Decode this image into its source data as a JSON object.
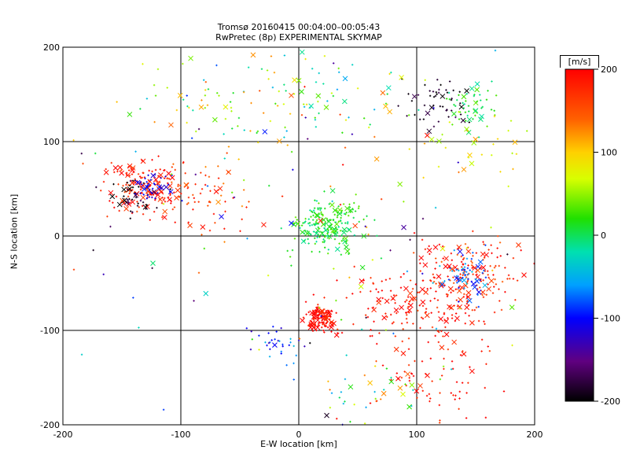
{
  "chart_data": {
    "type": "scatter",
    "title": "Tromsø 20160415 00:04:00–00:05:43",
    "subtitle": "RwPretec (8p) EXPERIMENTAL SKYMAP",
    "xlabel": "E-W location [km]",
    "ylabel": "N-S location [km]",
    "xlim": [
      -200,
      200
    ],
    "ylim": [
      -200,
      200
    ],
    "xticks": [
      -200,
      -100,
      0,
      100,
      200
    ],
    "yticks": [
      -200,
      -100,
      0,
      100,
      200
    ],
    "grid": true,
    "markers": [
      "+",
      "x"
    ],
    "colorbar": {
      "label": "[m/s]",
      "range": [
        -200,
        200
      ],
      "ticks": [
        200,
        100,
        0,
        -100,
        -200
      ],
      "placement": "right"
    },
    "clusters": [
      {
        "x": -130,
        "y": 50,
        "sx": 18,
        "sy": 14,
        "n": 160,
        "v": [
          150,
          220
        ]
      },
      {
        "x": -140,
        "y": 40,
        "sx": 10,
        "sy": 10,
        "n": 40,
        "v": [
          -210,
          -160
        ]
      },
      {
        "x": -125,
        "y": 52,
        "sx": 8,
        "sy": 6,
        "n": 40,
        "v": [
          -130,
          -90
        ]
      },
      {
        "x": -80,
        "y": 45,
        "sx": 20,
        "sy": 20,
        "n": 60,
        "v": [
          120,
          200
        ]
      },
      {
        "x": -60,
        "y": 140,
        "sx": 40,
        "sy": 30,
        "n": 70,
        "v": [
          -100,
          160
        ]
      },
      {
        "x": 20,
        "y": 10,
        "sx": 12,
        "sy": 12,
        "n": 170,
        "v": [
          -20,
          40
        ]
      },
      {
        "x": 40,
        "y": 25,
        "sx": 10,
        "sy": 5,
        "n": 30,
        "v": [
          0,
          40
        ]
      },
      {
        "x": 20,
        "y": -85,
        "sx": 6,
        "sy": 7,
        "n": 130,
        "v": [
          170,
          220
        ]
      },
      {
        "x": 85,
        "y": -70,
        "sx": 30,
        "sy": 18,
        "n": 110,
        "v": [
          160,
          220
        ]
      },
      {
        "x": 120,
        "y": -130,
        "sx": 25,
        "sy": 40,
        "n": 120,
        "v": [
          160,
          220
        ]
      },
      {
        "x": 145,
        "y": -40,
        "sx": 22,
        "sy": 20,
        "n": 160,
        "v": [
          140,
          220
        ]
      },
      {
        "x": 140,
        "y": -40,
        "sx": 12,
        "sy": 15,
        "n": 60,
        "v": [
          -110,
          -40
        ]
      },
      {
        "x": 120,
        "y": 145,
        "sx": 12,
        "sy": 12,
        "n": 50,
        "v": [
          -210,
          -170
        ]
      },
      {
        "x": 145,
        "y": 135,
        "sx": 10,
        "sy": 12,
        "n": 50,
        "v": [
          -20,
          40
        ]
      },
      {
        "x": -20,
        "y": -110,
        "sx": 10,
        "sy": 8,
        "n": 30,
        "v": [
          -140,
          -40
        ]
      },
      {
        "x": 20,
        "y": 140,
        "sx": 40,
        "sy": 30,
        "n": 60,
        "v": [
          -60,
          130
        ]
      },
      {
        "x": 0,
        "y": 0,
        "sx": 110,
        "sy": 110,
        "n": 140,
        "v": [
          -200,
          200
        ]
      },
      {
        "x": 60,
        "y": -160,
        "sx": 30,
        "sy": 20,
        "n": 40,
        "v": [
          -100,
          200
        ]
      },
      {
        "x": 150,
        "y": 100,
        "sx": 30,
        "sy": 20,
        "n": 30,
        "v": [
          50,
          140
        ]
      }
    ]
  }
}
